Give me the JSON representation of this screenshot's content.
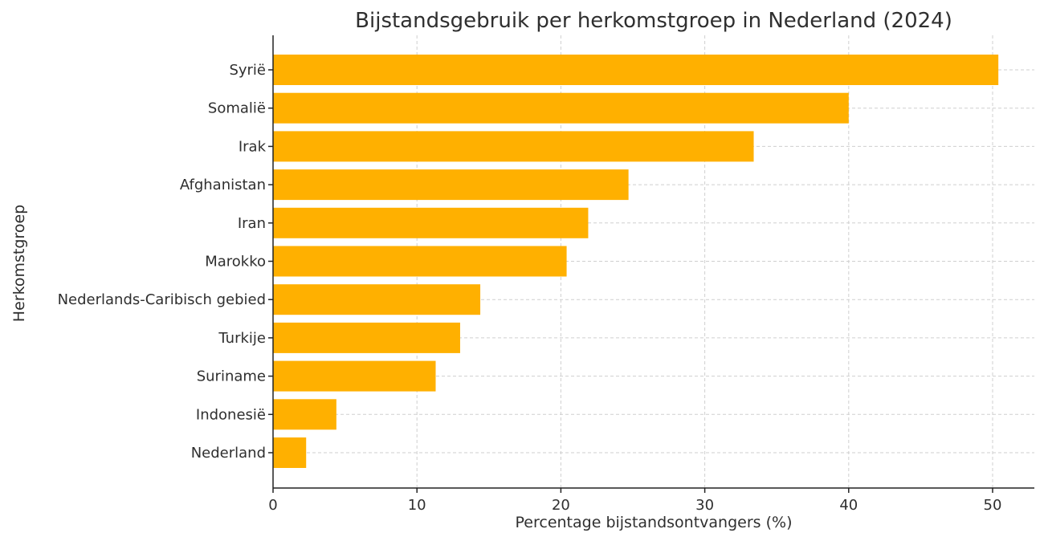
{
  "chart_data": {
    "type": "bar",
    "orientation": "horizontal",
    "title": "Bijstandsgebruik per herkomstgroep in Nederland (2024)",
    "xlabel": "Percentage bijstandsontvangers (%)",
    "ylabel": "Herkomstgroep",
    "categories": [
      "Syrië",
      "Somalië",
      "Irak",
      "Afghanistan",
      "Iran",
      "Marokko",
      "Nederlands-Caribisch gebied",
      "Turkije",
      "Suriname",
      "Indonesië",
      "Nederland"
    ],
    "values": [
      50.4,
      40.0,
      33.4,
      24.7,
      21.9,
      20.4,
      14.4,
      13.0,
      11.3,
      4.4,
      2.3
    ],
    "xlim": [
      0,
      53
    ],
    "xticks": [
      0,
      10,
      20,
      30,
      40,
      50
    ],
    "grid": true,
    "bar_color": "#FFB000"
  }
}
